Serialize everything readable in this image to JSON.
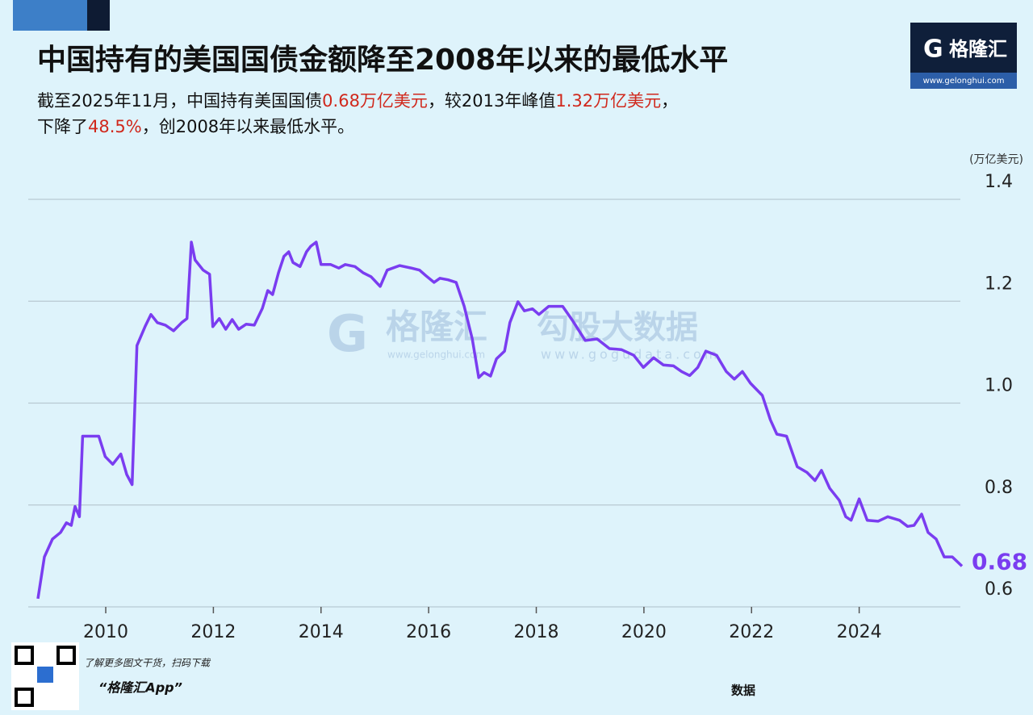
{
  "chart_data": {
    "type": "line",
    "title": "中国持有的美国国债金额降至2008年以来的最低水平",
    "subtitle_lines": [
      [
        {
          "text": "截至2025年11月，中国持有美国国债",
          "highlight": false
        },
        {
          "text": "0.68万亿美元",
          "highlight": true
        },
        {
          "text": "，较2013年峰值",
          "highlight": false
        },
        {
          "text": "1.32万亿美元",
          "highlight": true
        },
        {
          "text": "，",
          "highlight": false
        }
      ],
      [
        {
          "text": "下降了",
          "highlight": false
        },
        {
          "text": "48.5%",
          "highlight": true
        },
        {
          "text": "，创2008年以来最低水平。",
          "highlight": false
        }
      ]
    ],
    "highlight_color": "#d0281c",
    "y_axis_label": "(万亿美元)",
    "color": "#7a3df0",
    "grid": true,
    "xlim": [
      2008.5,
      2026
    ],
    "xticks": [
      2010,
      2012,
      2014,
      2016,
      2018,
      2020,
      2022,
      2024
    ],
    "ylim": [
      0.6,
      1.4
    ],
    "yticks": [
      0.6,
      0.8,
      {
        "value": 1,
        "label": "1.0"
      },
      1.2,
      1.4
    ],
    "x": [
      2008.74,
      2008.86,
      2009.01,
      2009.16,
      2009.27,
      2009.36,
      2009.43,
      2009.51,
      2009.57,
      2009.72,
      2009.87,
      2009.99,
      2010.13,
      2010.28,
      2010.39,
      2010.49,
      2010.58,
      2010.73,
      2010.84,
      2010.96,
      2011.11,
      2011.26,
      2011.41,
      2011.51,
      2011.59,
      2011.66,
      2011.81,
      2011.93,
      2011.99,
      2012.11,
      2012.23,
      2012.35,
      2012.47,
      2012.61,
      2012.76,
      2012.91,
      2013.01,
      2013.1,
      2013.21,
      2013.31,
      2013.4,
      2013.48,
      2013.61,
      2013.73,
      2013.81,
      2013.91,
      2014.0,
      2014.18,
      2014.33,
      2014.45,
      2014.63,
      2014.78,
      2014.93,
      2015.1,
      2015.23,
      2015.46,
      2015.68,
      2015.83,
      2015.95,
      2016.1,
      2016.21,
      2016.36,
      2016.51,
      2016.66,
      2016.81,
      2016.93,
      2017.03,
      2017.15,
      2017.26,
      2017.41,
      2017.51,
      2017.66,
      2017.78,
      2017.93,
      2018.05,
      2018.23,
      2018.49,
      2018.68,
      2018.91,
      2019.13,
      2019.36,
      2019.58,
      2019.81,
      2019.99,
      2020.18,
      2020.36,
      2020.55,
      2020.7,
      2020.85,
      2021.0,
      2021.15,
      2021.35,
      2021.53,
      2021.68,
      2021.83,
      2021.98,
      2022.2,
      2022.35,
      2022.47,
      2022.65,
      2022.85,
      2023.03,
      2023.18,
      2023.3,
      2023.45,
      2023.63,
      2023.75,
      2023.85,
      2024.0,
      2024.15,
      2024.35,
      2024.53,
      2024.75,
      2024.9,
      2025.02,
      2025.16,
      2025.28,
      2025.43,
      2025.58,
      2025.73,
      2025.91
    ],
    "values": [
      0.616,
      0.698,
      0.733,
      0.746,
      0.765,
      0.76,
      0.797,
      0.777,
      0.935,
      0.935,
      0.935,
      0.895,
      0.88,
      0.9,
      0.86,
      0.84,
      1.113,
      1.15,
      1.174,
      1.158,
      1.153,
      1.142,
      1.158,
      1.166,
      1.316,
      1.281,
      1.261,
      1.253,
      1.15,
      1.166,
      1.145,
      1.164,
      1.145,
      1.155,
      1.153,
      1.186,
      1.221,
      1.213,
      1.256,
      1.288,
      1.297,
      1.276,
      1.268,
      1.297,
      1.308,
      1.316,
      1.272,
      1.272,
      1.265,
      1.272,
      1.268,
      1.256,
      1.248,
      1.229,
      1.261,
      1.27,
      1.265,
      1.261,
      1.25,
      1.237,
      1.245,
      1.242,
      1.237,
      1.19,
      1.126,
      1.05,
      1.06,
      1.053,
      1.087,
      1.102,
      1.158,
      1.199,
      1.181,
      1.185,
      1.174,
      1.19,
      1.19,
      1.161,
      1.123,
      1.126,
      1.107,
      1.105,
      1.094,
      1.07,
      1.089,
      1.075,
      1.073,
      1.062,
      1.054,
      1.07,
      1.102,
      1.094,
      1.062,
      1.047,
      1.062,
      1.039,
      1.015,
      0.967,
      0.939,
      0.935,
      0.875,
      0.864,
      0.848,
      0.868,
      0.833,
      0.809,
      0.777,
      0.77,
      0.812,
      0.77,
      0.768,
      0.777,
      0.77,
      0.758,
      0.76,
      0.782,
      0.746,
      0.733,
      0.698,
      0.698,
      0.68
    ]
  },
  "logo": {
    "name": "格隆汇",
    "url": "www.gelonghui.com"
  },
  "watermark": {
    "left_name": "格隆汇",
    "left_url": "www.gelonghui.com",
    "right_name": "勾股大数据",
    "right_url": "www.gogudata.com"
  },
  "footer": {
    "prompt": "了解更多图文干货，扫码下载",
    "app": "“格隆汇App”",
    "source": "数据"
  }
}
